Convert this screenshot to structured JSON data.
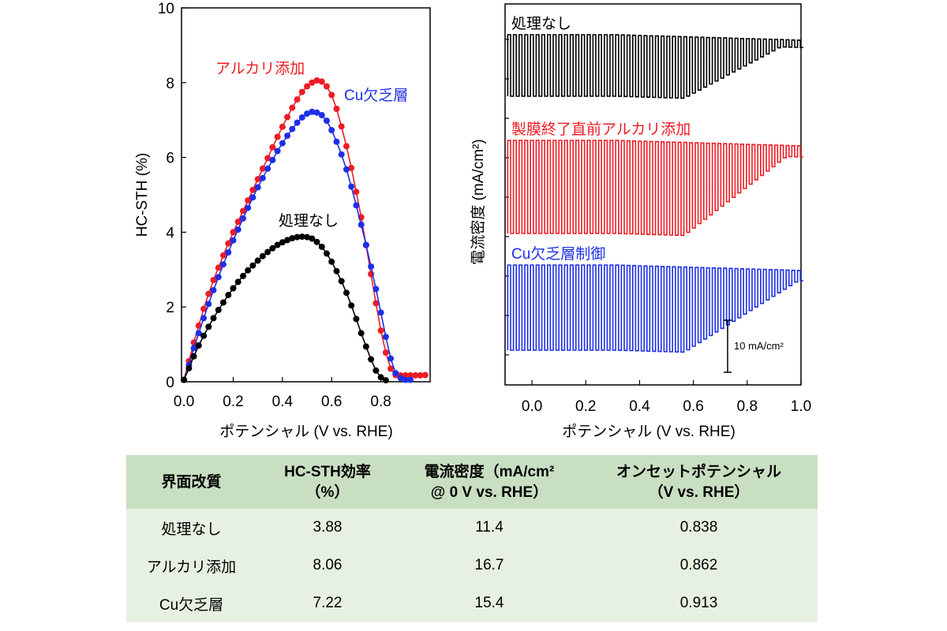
{
  "left_chart": {
    "ylabel": "HC-STH (%)",
    "xlabel": "ポテンシャル (V vs. RHE)",
    "xticks": [
      "0.0",
      "0.2",
      "0.4",
      "0.6",
      "0.8"
    ],
    "yticks": [
      "0",
      "2",
      "4",
      "6",
      "8",
      "10"
    ],
    "series_labels": {
      "alkali": "アルカリ添加",
      "cu": "Cu欠乏層",
      "none": "処理なし"
    }
  },
  "right_chart": {
    "ylabel": "電流密度 (mA/cm²)",
    "xlabel": "ポテンシャル (V vs. RHE)",
    "xticks": [
      "0.0",
      "0.2",
      "0.4",
      "0.6",
      "0.8",
      "1.0"
    ],
    "trace_labels": {
      "none": "処理なし",
      "alkali": "製膜終了直前アルカリ添加",
      "cu": "Cu欠乏層制御"
    },
    "scale_bar_label": "10 mA/cm²"
  },
  "table": {
    "headers": [
      {
        "line1": "界面改質",
        "line2": ""
      },
      {
        "line1": "HC-STH効率",
        "line2": "（%）"
      },
      {
        "line1": "電流密度（mA/cm²",
        "line2": "@ 0 V vs. RHE）"
      },
      {
        "line1": "オンセットポテンシャル",
        "line2": "（V vs. RHE）"
      }
    ],
    "rows": [
      {
        "name": "処理なし",
        "sth": "3.88",
        "current": "11.4",
        "onset": "0.838"
      },
      {
        "name": "アルカリ添加",
        "sth": "8.06",
        "current": "16.7",
        "onset": "0.862"
      },
      {
        "name": "Cu欠乏層",
        "sth": "7.22",
        "current": "15.4",
        "onset": "0.913"
      }
    ]
  },
  "chart_data": [
    {
      "type": "line",
      "xlabel": "ポテンシャル (V vs. RHE)",
      "ylabel": "HC-STH (%)",
      "xlim": [
        -0.01,
        1.0
      ],
      "ylim": [
        0,
        10
      ],
      "series": [
        {
          "name": "アルカリ添加",
          "color": "#ee1c24",
          "x": [
            0.0,
            0.02,
            0.04,
            0.06,
            0.08,
            0.1,
            0.12,
            0.14,
            0.16,
            0.18,
            0.2,
            0.22,
            0.24,
            0.26,
            0.28,
            0.3,
            0.32,
            0.34,
            0.36,
            0.38,
            0.4,
            0.42,
            0.44,
            0.46,
            0.48,
            0.5,
            0.52,
            0.54,
            0.56,
            0.58,
            0.6,
            0.62,
            0.64,
            0.66,
            0.68,
            0.7,
            0.72,
            0.74,
            0.76,
            0.78,
            0.8,
            0.82,
            0.84,
            0.86,
            0.88,
            0.9,
            0.92,
            0.94,
            0.96,
            0.98
          ],
          "y": [
            0.05,
            0.55,
            1.05,
            1.5,
            1.95,
            2.35,
            2.72,
            3.05,
            3.38,
            3.7,
            4.0,
            4.28,
            4.57,
            4.85,
            5.13,
            5.42,
            5.7,
            5.98,
            6.27,
            6.55,
            6.82,
            7.08,
            7.33,
            7.55,
            7.75,
            7.9,
            8.0,
            8.06,
            8.03,
            7.9,
            7.67,
            7.3,
            6.83,
            6.3,
            5.72,
            5.08,
            4.4,
            3.65,
            2.88,
            2.1,
            1.37,
            0.78,
            0.35,
            0.18,
            0.17,
            0.17,
            0.17,
            0.17,
            0.17,
            0.18
          ]
        },
        {
          "name": "Cu欠乏層",
          "color": "#1d2fe6",
          "x": [
            0.0,
            0.02,
            0.04,
            0.06,
            0.08,
            0.1,
            0.12,
            0.14,
            0.16,
            0.18,
            0.2,
            0.22,
            0.24,
            0.26,
            0.28,
            0.3,
            0.32,
            0.34,
            0.36,
            0.38,
            0.4,
            0.42,
            0.44,
            0.46,
            0.48,
            0.5,
            0.52,
            0.54,
            0.56,
            0.58,
            0.6,
            0.62,
            0.64,
            0.66,
            0.68,
            0.7,
            0.72,
            0.74,
            0.76,
            0.78,
            0.8,
            0.82,
            0.84,
            0.86,
            0.88,
            0.9,
            0.92
          ],
          "y": [
            0.05,
            0.45,
            0.9,
            1.3,
            1.7,
            2.08,
            2.45,
            2.8,
            3.14,
            3.46,
            3.78,
            4.07,
            4.37,
            4.65,
            4.93,
            5.2,
            5.45,
            5.7,
            5.93,
            6.17,
            6.38,
            6.58,
            6.76,
            6.93,
            7.07,
            7.17,
            7.22,
            7.2,
            7.13,
            6.98,
            6.73,
            6.42,
            6.08,
            5.68,
            5.22,
            4.72,
            4.2,
            3.66,
            3.08,
            2.48,
            1.85,
            1.2,
            0.62,
            0.23,
            0.1,
            0.05,
            0.05
          ]
        },
        {
          "name": "処理なし",
          "color": "#000000",
          "x": [
            0.0,
            0.02,
            0.04,
            0.06,
            0.08,
            0.1,
            0.12,
            0.14,
            0.16,
            0.18,
            0.2,
            0.22,
            0.24,
            0.26,
            0.28,
            0.3,
            0.32,
            0.34,
            0.36,
            0.38,
            0.4,
            0.42,
            0.44,
            0.46,
            0.48,
            0.5,
            0.52,
            0.54,
            0.56,
            0.58,
            0.6,
            0.62,
            0.64,
            0.66,
            0.68,
            0.7,
            0.72,
            0.74,
            0.76,
            0.78,
            0.8,
            0.82
          ],
          "y": [
            0.05,
            0.36,
            0.68,
            0.97,
            1.23,
            1.47,
            1.7,
            1.92,
            2.12,
            2.32,
            2.5,
            2.67,
            2.83,
            2.98,
            3.11,
            3.24,
            3.36,
            3.47,
            3.57,
            3.66,
            3.73,
            3.79,
            3.84,
            3.87,
            3.88,
            3.87,
            3.83,
            3.74,
            3.61,
            3.43,
            3.21,
            2.96,
            2.69,
            2.38,
            2.04,
            1.68,
            1.3,
            0.94,
            0.6,
            0.3,
            0.12,
            0.04
          ]
        }
      ]
    },
    {
      "type": "line",
      "xlabel": "ポテンシャル (V vs. RHE)",
      "ylabel": "電流密度 (mA/cm²)",
      "xlim": [
        -0.1,
        1.0
      ],
      "grid": false,
      "description": "chopped-light current traces; y offsets are arbitrary, scale bar = 10 mA/cm²",
      "series": [
        {
          "name": "処理なし",
          "color": "#000000",
          "chop_amplitude_mA_cm2": 11.4,
          "onset_V": 0.838
        },
        {
          "name": "製膜終了直前アルカリ添加",
          "color": "#ee1c24",
          "chop_amplitude_mA_cm2": 16.7,
          "onset_V": 0.862
        },
        {
          "name": "Cu欠乏層制御",
          "color": "#1d2fe6",
          "chop_amplitude_mA_cm2": 15.4,
          "onset_V": 0.913
        }
      ],
      "scale_bar": {
        "value": 10,
        "unit": "mA/cm²"
      }
    }
  ]
}
